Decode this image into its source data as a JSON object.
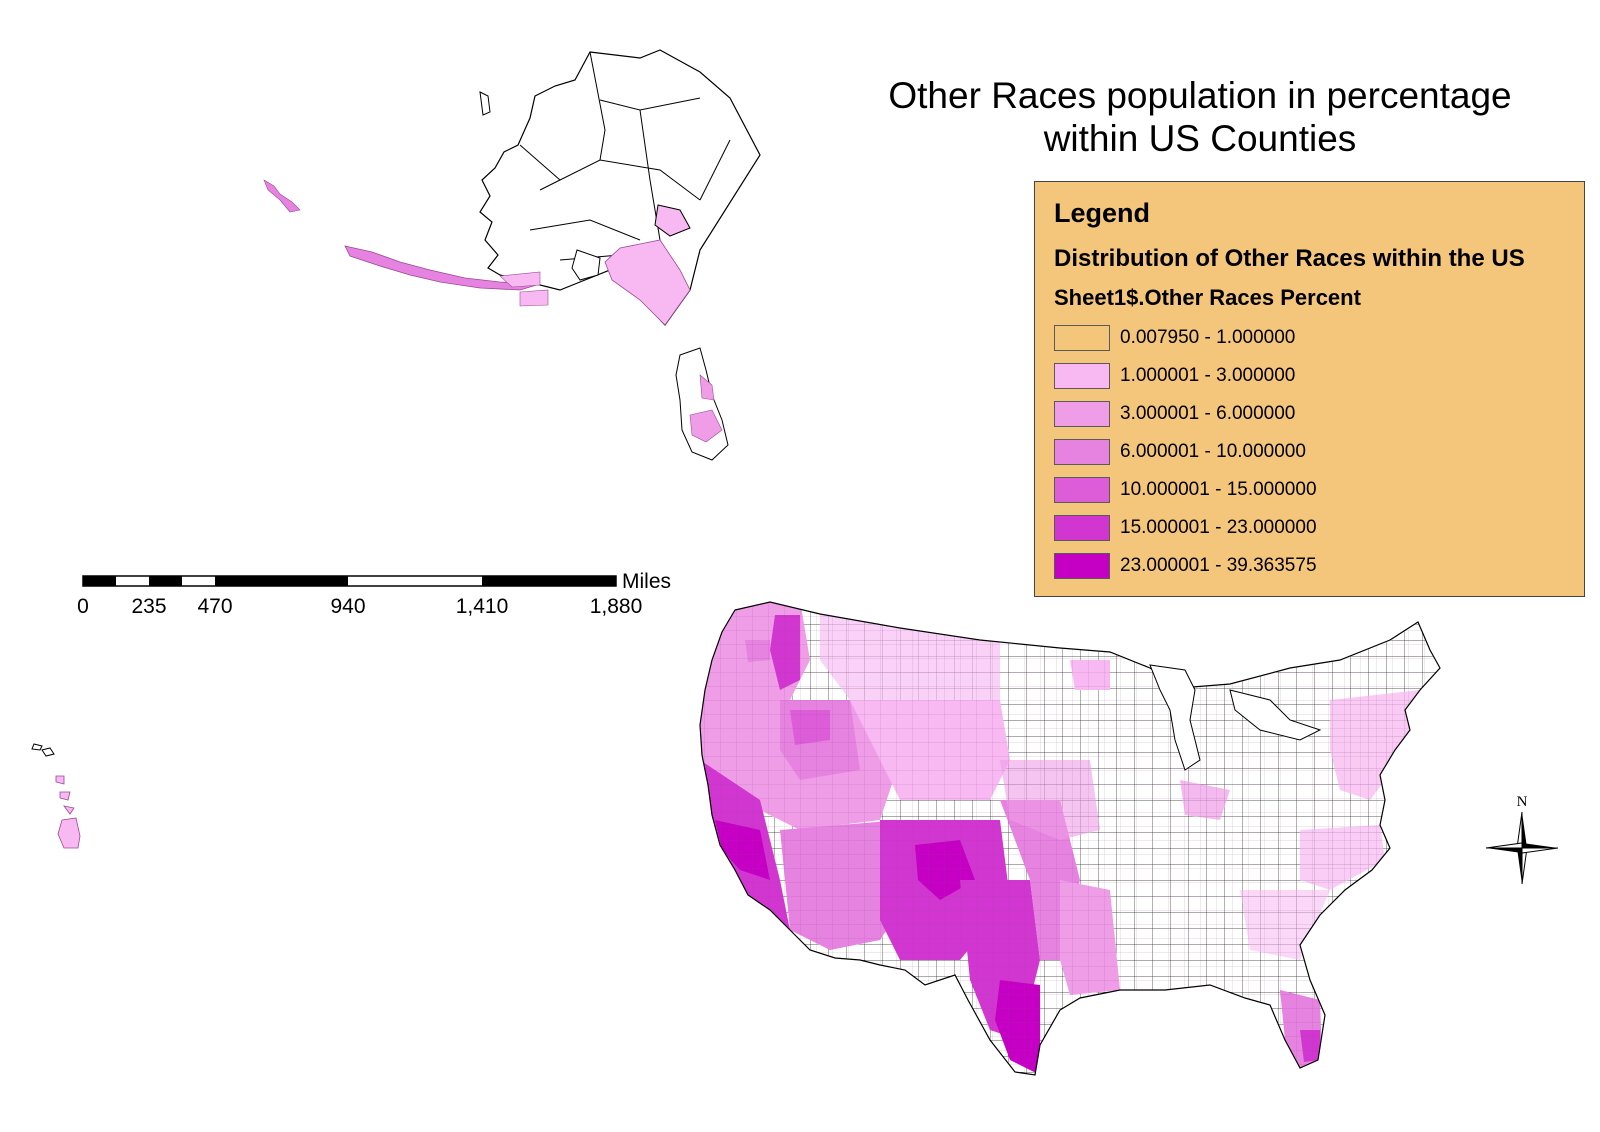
{
  "map": {
    "title_line1": "Other Races population in percentage",
    "title_line2": "within US Counties"
  },
  "legend": {
    "heading": "Legend",
    "layer_name": "Distribution of Other Races within the US",
    "field_name": "Sheet1$.Other Races Percent",
    "classes": [
      {
        "label": "0.007950 - 1.000000",
        "color": "#f4c67c"
      },
      {
        "label": "1.000001 - 3.000000",
        "color": "#f8b8f2"
      },
      {
        "label": "3.000001 - 6.000000",
        "color": "#f09de8"
      },
      {
        "label": "6.000001 - 10.000000",
        "color": "#e682e0"
      },
      {
        "label": "10.000001 - 15.000000",
        "color": "#dd5cd8"
      },
      {
        "label": "15.000001 - 23.000000",
        "color": "#d236d0"
      },
      {
        "label": "23.000001 - 39.363575",
        "color": "#c500c4"
      }
    ]
  },
  "scale_bar": {
    "unit": "Miles",
    "ticks": [
      "0",
      "235",
      "470",
      "940",
      "1,410",
      "1,880"
    ]
  },
  "north_arrow": {
    "label": "N"
  }
}
